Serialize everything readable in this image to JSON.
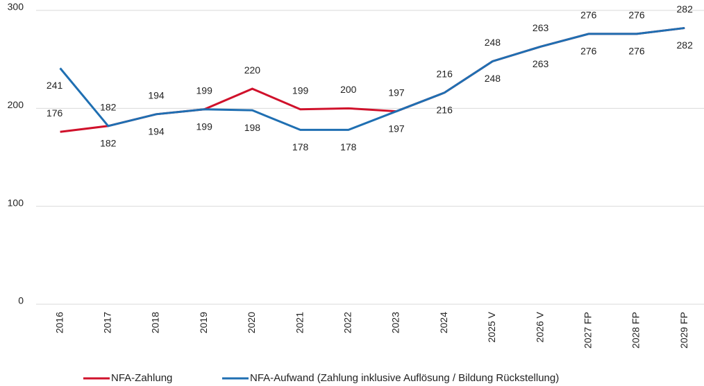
{
  "chart_data": {
    "type": "line",
    "categories": [
      "2016",
      "2017",
      "2018",
      "2019",
      "2020",
      "2021",
      "2022",
      "2023",
      "2024",
      "2025 V",
      "2026 V",
      "2027 FP",
      "2028 FP",
      "2029 FP"
    ],
    "series": [
      {
        "name": "NFA-Zahlung",
        "color": "#d0112b",
        "values": [
          176,
          182,
          194,
          199,
          220,
          199,
          200,
          197,
          216,
          248,
          263,
          276,
          276,
          282
        ]
      },
      {
        "name": "NFA-Aufwand (Zahlung inklusive Auflösung / Bildung Rückstellung)",
        "color": "#1f6fb2",
        "values": [
          241,
          182,
          194,
          199,
          198,
          178,
          178,
          197,
          216,
          248,
          263,
          276,
          276,
          282
        ]
      }
    ],
    "ylim": [
      0,
      300
    ],
    "yticks": [
      0,
      100,
      200,
      300
    ],
    "grid": true,
    "legend": "bottom"
  }
}
